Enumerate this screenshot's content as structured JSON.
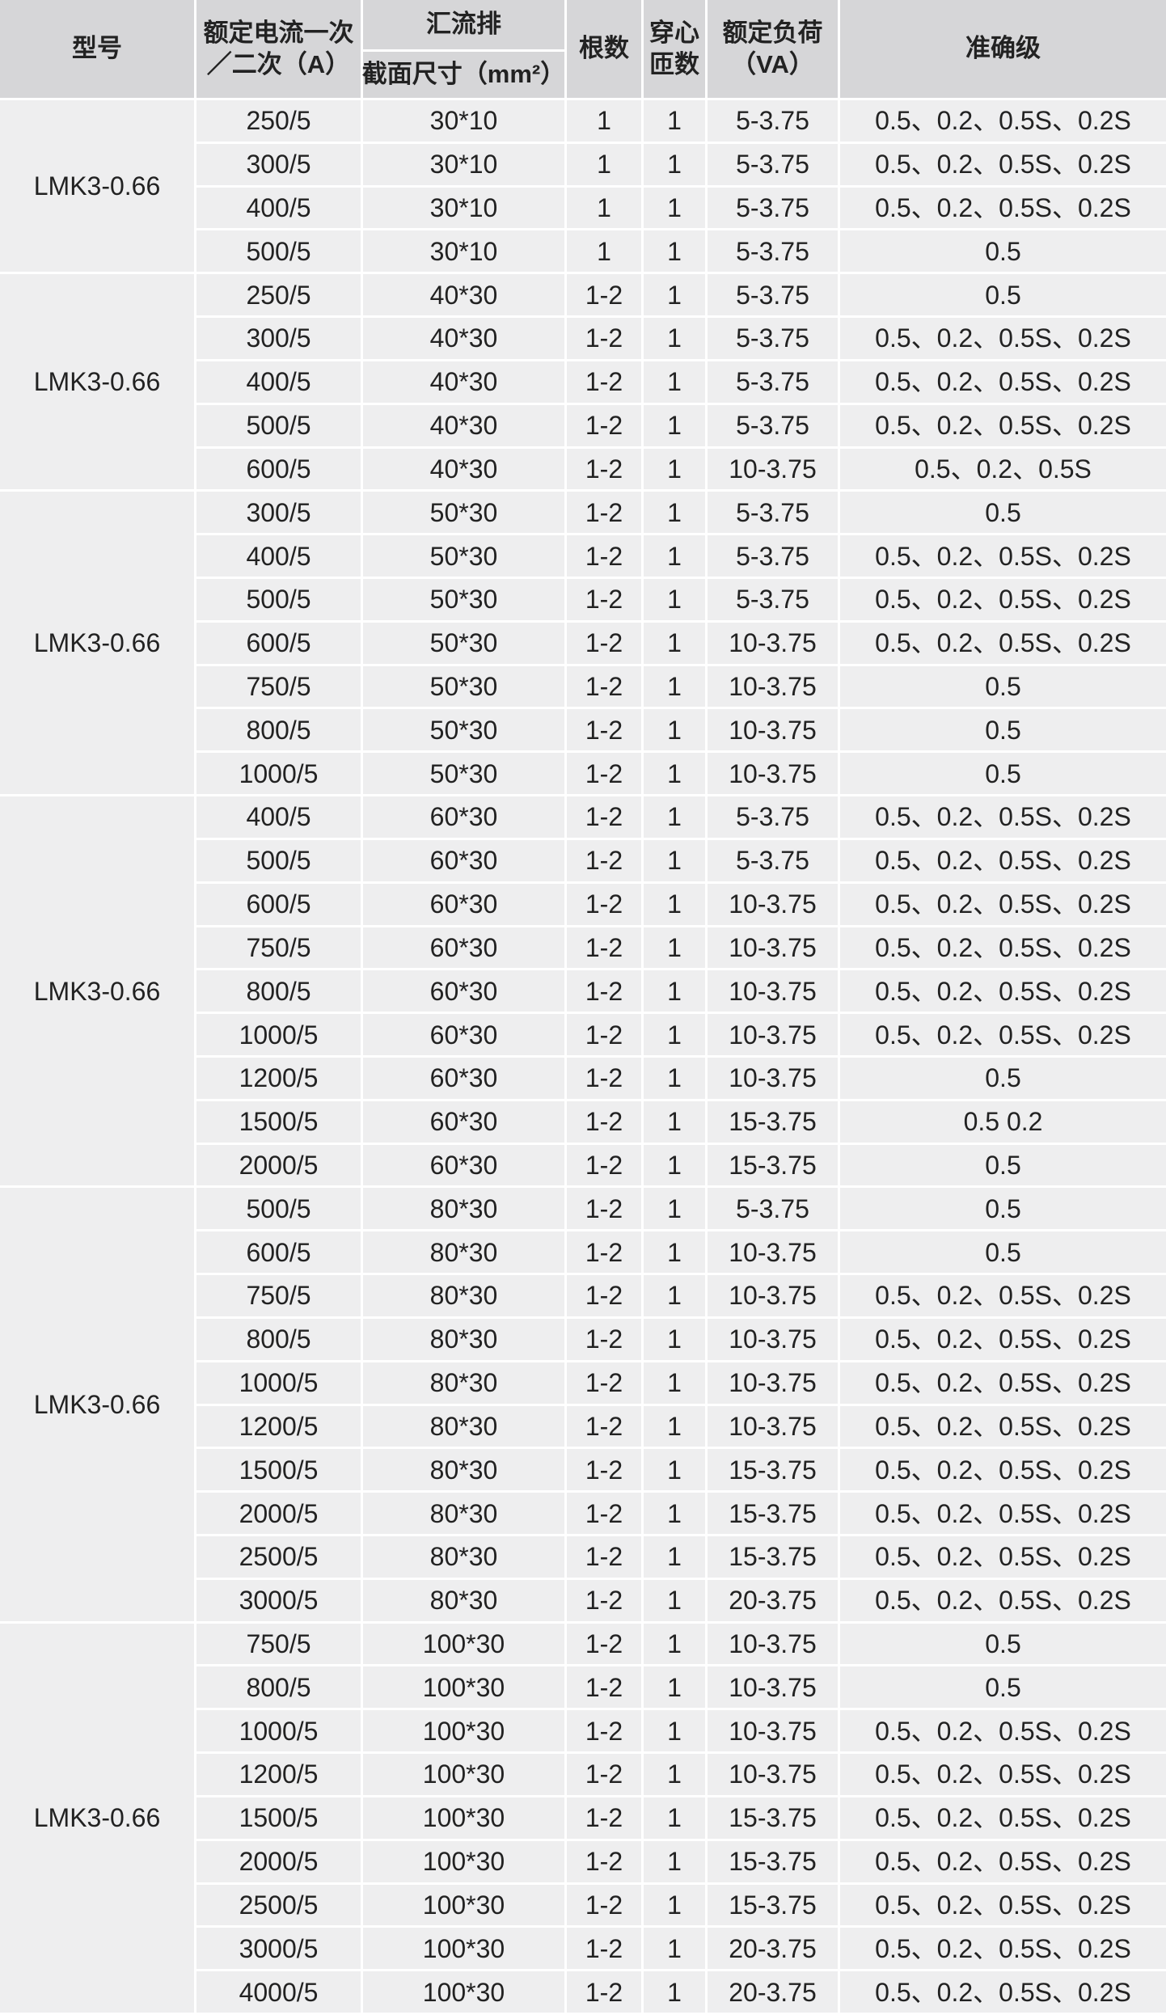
{
  "header": {
    "model": "型号",
    "current": [
      "额定电流一次",
      "／二次（A）"
    ],
    "busbar": "汇流排",
    "section": "截面尺寸（mm²）",
    "count": "根数",
    "turns": [
      "穿心",
      "匝数"
    ],
    "load": [
      "额定负荷",
      "（VA）"
    ],
    "accuracy": "准确级"
  },
  "groups": [
    {
      "model": "LMK3-0.66",
      "rows": [
        [
          "250/5",
          "30*10",
          "1",
          "1",
          "5-3.75",
          "0.5、0.2、0.5S、0.2S"
        ],
        [
          "300/5",
          "30*10",
          "1",
          "1",
          "5-3.75",
          "0.5、0.2、0.5S、0.2S"
        ],
        [
          "400/5",
          "30*10",
          "1",
          "1",
          "5-3.75",
          "0.5、0.2、0.5S、0.2S"
        ],
        [
          "500/5",
          "30*10",
          "1",
          "1",
          "5-3.75",
          "0.5"
        ]
      ]
    },
    {
      "model": "LMK3-0.66",
      "rows": [
        [
          "250/5",
          "40*30",
          "1-2",
          "1",
          "5-3.75",
          "0.5"
        ],
        [
          "300/5",
          "40*30",
          "1-2",
          "1",
          "5-3.75",
          "0.5、0.2、0.5S、0.2S"
        ],
        [
          "400/5",
          "40*30",
          "1-2",
          "1",
          "5-3.75",
          "0.5、0.2、0.5S、0.2S"
        ],
        [
          "500/5",
          "40*30",
          "1-2",
          "1",
          "5-3.75",
          "0.5、0.2、0.5S、0.2S"
        ],
        [
          "600/5",
          "40*30",
          "1-2",
          "1",
          "10-3.75",
          "0.5、0.2、0.5S"
        ]
      ]
    },
    {
      "model": "LMK3-0.66",
      "rows": [
        [
          "300/5",
          "50*30",
          "1-2",
          "1",
          "5-3.75",
          "0.5"
        ],
        [
          "400/5",
          "50*30",
          "1-2",
          "1",
          "5-3.75",
          "0.5、0.2、0.5S、0.2S"
        ],
        [
          "500/5",
          "50*30",
          "1-2",
          "1",
          "5-3.75",
          "0.5、0.2、0.5S、0.2S"
        ],
        [
          "600/5",
          "50*30",
          "1-2",
          "1",
          "10-3.75",
          "0.5、0.2、0.5S、0.2S"
        ],
        [
          "750/5",
          "50*30",
          "1-2",
          "1",
          "10-3.75",
          "0.5"
        ],
        [
          "800/5",
          "50*30",
          "1-2",
          "1",
          "10-3.75",
          "0.5"
        ],
        [
          "1000/5",
          "50*30",
          "1-2",
          "1",
          "10-3.75",
          "0.5"
        ]
      ]
    },
    {
      "model": "LMK3-0.66",
      "rows": [
        [
          "400/5",
          "60*30",
          "1-2",
          "1",
          "5-3.75",
          "0.5、0.2、0.5S、0.2S"
        ],
        [
          "500/5",
          "60*30",
          "1-2",
          "1",
          "5-3.75",
          "0.5、0.2、0.5S、0.2S"
        ],
        [
          "600/5",
          "60*30",
          "1-2",
          "1",
          "10-3.75",
          "0.5、0.2、0.5S、0.2S"
        ],
        [
          "750/5",
          "60*30",
          "1-2",
          "1",
          "10-3.75",
          "0.5、0.2、0.5S、0.2S"
        ],
        [
          "800/5",
          "60*30",
          "1-2",
          "1",
          "10-3.75",
          "0.5、0.2、0.5S、0.2S"
        ],
        [
          "1000/5",
          "60*30",
          "1-2",
          "1",
          "10-3.75",
          "0.5、0.2、0.5S、0.2S"
        ],
        [
          "1200/5",
          "60*30",
          "1-2",
          "1",
          "10-3.75",
          "0.5"
        ],
        [
          "1500/5",
          "60*30",
          "1-2",
          "1",
          "15-3.75",
          "0.5 0.2"
        ],
        [
          "2000/5",
          "60*30",
          "1-2",
          "1",
          "15-3.75",
          "0.5"
        ]
      ]
    },
    {
      "model": "LMK3-0.66",
      "rows": [
        [
          "500/5",
          "80*30",
          "1-2",
          "1",
          "5-3.75",
          "0.5"
        ],
        [
          "600/5",
          "80*30",
          "1-2",
          "1",
          "10-3.75",
          "0.5"
        ],
        [
          "750/5",
          "80*30",
          "1-2",
          "1",
          "10-3.75",
          "0.5、0.2、0.5S、0.2S"
        ],
        [
          "800/5",
          "80*30",
          "1-2",
          "1",
          "10-3.75",
          "0.5、0.2、0.5S、0.2S"
        ],
        [
          "1000/5",
          "80*30",
          "1-2",
          "1",
          "10-3.75",
          "0.5、0.2、0.5S、0.2S"
        ],
        [
          "1200/5",
          "80*30",
          "1-2",
          "1",
          "10-3.75",
          "0.5、0.2、0.5S、0.2S"
        ],
        [
          "1500/5",
          "80*30",
          "1-2",
          "1",
          "15-3.75",
          "0.5、0.2、0.5S、0.2S"
        ],
        [
          "2000/5",
          "80*30",
          "1-2",
          "1",
          "15-3.75",
          "0.5、0.2、0.5S、0.2S"
        ],
        [
          "2500/5",
          "80*30",
          "1-2",
          "1",
          "15-3.75",
          "0.5、0.2、0.5S、0.2S"
        ],
        [
          "3000/5",
          "80*30",
          "1-2",
          "1",
          "20-3.75",
          "0.5、0.2、0.5S、0.2S"
        ]
      ]
    },
    {
      "model": "LMK3-0.66",
      "rows": [
        [
          "750/5",
          "100*30",
          "1-2",
          "1",
          "10-3.75",
          "0.5"
        ],
        [
          "800/5",
          "100*30",
          "1-2",
          "1",
          "10-3.75",
          "0.5"
        ],
        [
          "1000/5",
          "100*30",
          "1-2",
          "1",
          "10-3.75",
          "0.5、0.2、0.5S、0.2S"
        ],
        [
          "1200/5",
          "100*30",
          "1-2",
          "1",
          "10-3.75",
          "0.5、0.2、0.5S、0.2S"
        ],
        [
          "1500/5",
          "100*30",
          "1-2",
          "1",
          "15-3.75",
          "0.5、0.2、0.5S、0.2S"
        ],
        [
          "2000/5",
          "100*30",
          "1-2",
          "1",
          "15-3.75",
          "0.5、0.2、0.5S、0.2S"
        ],
        [
          "2500/5",
          "100*30",
          "1-2",
          "1",
          "15-3.75",
          "0.5、0.2、0.5S、0.2S"
        ],
        [
          "3000/5",
          "100*30",
          "1-2",
          "1",
          "20-3.75",
          "0.5、0.2、0.5S、0.2S"
        ],
        [
          "4000/5",
          "100*30",
          "1-2",
          "1",
          "20-3.75",
          "0.5、0.2、0.5S、0.2S"
        ]
      ]
    }
  ]
}
